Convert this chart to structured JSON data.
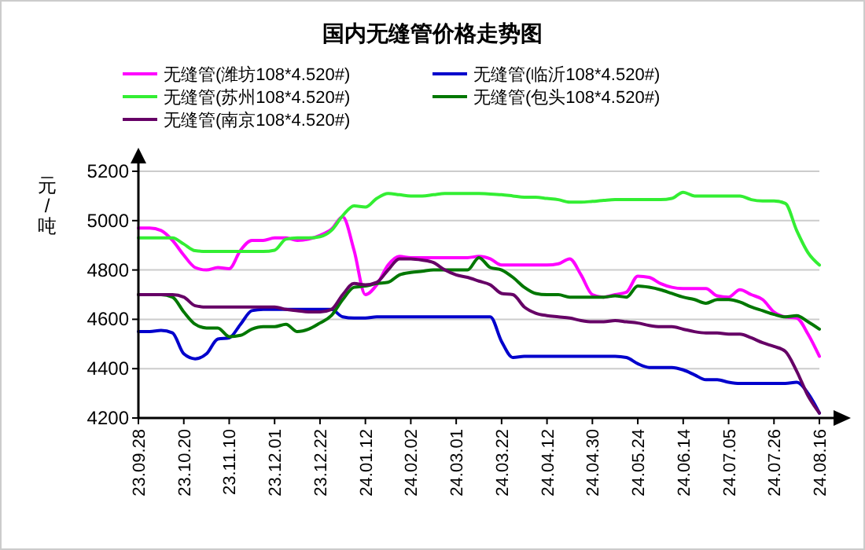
{
  "chart_data": {
    "type": "line",
    "title": "国内无缝管价格走势图",
    "ylabel": "元/吨",
    "categories": [
      "23.09.28",
      null,
      null,
      null,
      "23.10.20",
      null,
      null,
      null,
      "23.11.10",
      null,
      null,
      null,
      "23.12.01",
      null,
      null,
      null,
      "23.12.22",
      null,
      null,
      null,
      "24.01.12",
      null,
      null,
      null,
      "24.02.02",
      null,
      null,
      null,
      "24.03.01",
      null,
      null,
      null,
      "24.03.22",
      null,
      null,
      null,
      "24.04.12",
      null,
      null,
      null,
      "24.04.30",
      null,
      null,
      null,
      "24.05.24",
      null,
      null,
      null,
      "24.06.14",
      null,
      null,
      null,
      "24.07.05",
      null,
      null,
      null,
      "24.07.26",
      null,
      null,
      null,
      "24.08.16"
    ],
    "series": [
      {
        "name": "无缝管(潍坊108*4.520#)",
        "color": "#ff00ff",
        "values": [
          4970,
          4970,
          4960,
          4920,
          4860,
          4810,
          4800,
          4810,
          4805,
          4880,
          4920,
          4920,
          4930,
          4930,
          4920,
          4925,
          4940,
          4965,
          5015,
          4880,
          4700,
          4740,
          4820,
          4855,
          4850,
          4850,
          4850,
          4850,
          4850,
          4850,
          4855,
          4845,
          4820,
          4820,
          4820,
          4820,
          4820,
          4825,
          4845,
          4780,
          4700,
          4690,
          4700,
          4710,
          4775,
          4770,
          4745,
          4730,
          4725,
          4725,
          4725,
          4695,
          4690,
          4720,
          4700,
          4680,
          4630,
          4610,
          4605,
          4540,
          4450
        ]
      },
      {
        "name": "无缝管(临沂108*4.520#)",
        "color": "#0000cc",
        "values": [
          4550,
          4550,
          4555,
          4545,
          4460,
          4440,
          4460,
          4520,
          4525,
          4580,
          4635,
          4640,
          4640,
          4640,
          4640,
          4640,
          4640,
          4640,
          4610,
          4605,
          4605,
          4610,
          4610,
          4610,
          4610,
          4610,
          4610,
          4610,
          4610,
          4610,
          4610,
          4610,
          4510,
          4445,
          4450,
          4450,
          4450,
          4450,
          4450,
          4450,
          4450,
          4450,
          4450,
          4445,
          4420,
          4405,
          4405,
          4405,
          4395,
          4375,
          4355,
          4355,
          4345,
          4340,
          4340,
          4340,
          4340,
          4340,
          4345,
          4300,
          4220
        ]
      },
      {
        "name": "无缝管(苏州108*4.520#)",
        "color": "#33ee33",
        "values": [
          4930,
          4930,
          4930,
          4930,
          4905,
          4878,
          4875,
          4875,
          4875,
          4875,
          4875,
          4875,
          4880,
          4925,
          4930,
          4930,
          4935,
          4960,
          5020,
          5060,
          5055,
          5090,
          5110,
          5105,
          5100,
          5100,
          5105,
          5110,
          5110,
          5110,
          5110,
          5108,
          5105,
          5100,
          5095,
          5095,
          5090,
          5085,
          5075,
          5075,
          5078,
          5082,
          5085,
          5085,
          5085,
          5085,
          5085,
          5090,
          5115,
          5100,
          5100,
          5100,
          5100,
          5100,
          5085,
          5080,
          5080,
          5070,
          4960,
          4870,
          4820
        ]
      },
      {
        "name": "无缝管(包头108*4.520#)",
        "color": "#007700",
        "values": [
          4700,
          4700,
          4700,
          4690,
          4630,
          4580,
          4565,
          4565,
          4530,
          4535,
          4560,
          4570,
          4570,
          4580,
          4550,
          4560,
          4585,
          4615,
          4680,
          4730,
          4735,
          4745,
          4750,
          4780,
          4790,
          4795,
          4800,
          4800,
          4800,
          4800,
          4850,
          4810,
          4800,
          4770,
          4730,
          4705,
          4700,
          4700,
          4690,
          4690,
          4690,
          4690,
          4695,
          4690,
          4735,
          4730,
          4720,
          4705,
          4690,
          4680,
          4665,
          4680,
          4680,
          4670,
          4650,
          4635,
          4620,
          4610,
          4615,
          4590,
          4560
        ]
      },
      {
        "name": "无缝管(南京108*4.520#)",
        "color": "#660066",
        "values": [
          4700,
          4700,
          4700,
          4700,
          4690,
          4655,
          4650,
          4650,
          4650,
          4650,
          4650,
          4650,
          4650,
          4640,
          4635,
          4630,
          4630,
          4640,
          4700,
          4745,
          4740,
          4750,
          4800,
          4845,
          4845,
          4840,
          4830,
          4800,
          4780,
          4770,
          4755,
          4740,
          4705,
          4700,
          4650,
          4625,
          4615,
          4610,
          4605,
          4595,
          4590,
          4590,
          4595,
          4590,
          4585,
          4575,
          4570,
          4570,
          4560,
          4550,
          4545,
          4545,
          4540,
          4540,
          4525,
          4505,
          4490,
          4470,
          4390,
          4290,
          4220
        ]
      }
    ],
    "ylim": [
      4200,
      5200
    ],
    "yticks": [
      4200,
      4400,
      4600,
      4800,
      5000,
      5200
    ],
    "grid": "y",
    "legend": "top",
    "marker": "none",
    "line_style": "solid"
  }
}
